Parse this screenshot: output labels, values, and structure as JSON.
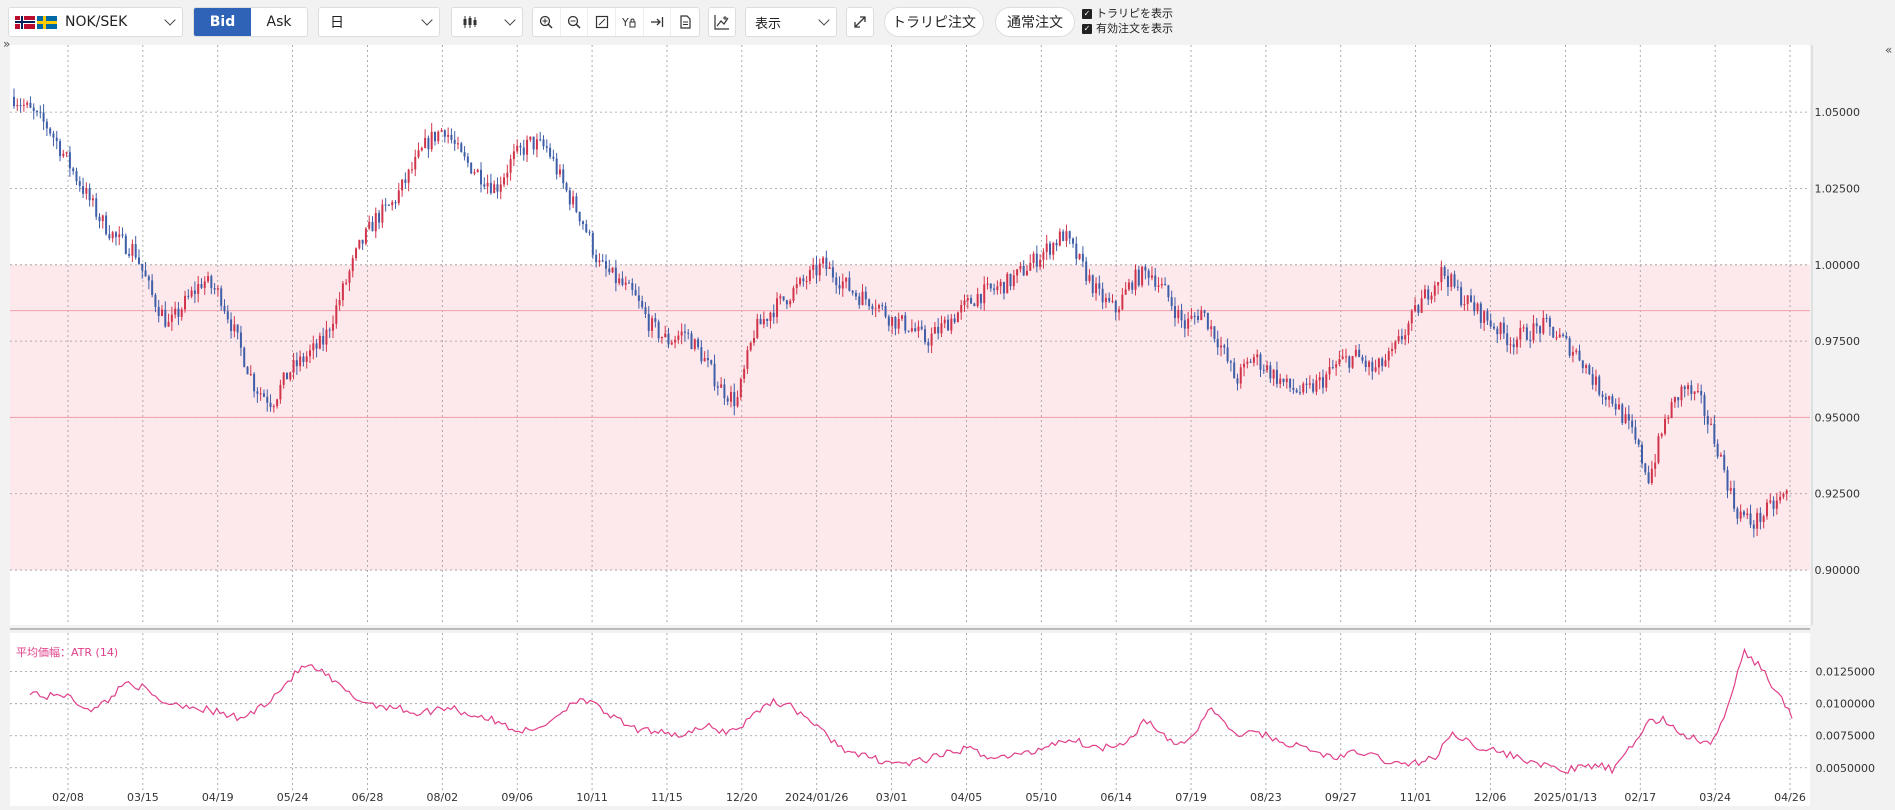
{
  "toolbar": {
    "pair": "NOK/SEK",
    "bid_label": "Bid",
    "ask_label": "Ask",
    "period": "日",
    "display_label": "表示",
    "trap_order": "トラリピ注文",
    "normal_order": "通常注文",
    "check_trap": "トラリピを表示",
    "check_valid": "有効注文を表示"
  },
  "colors": {
    "bid_active": "#2f63b7",
    "up_candle": "#d1344a",
    "down_candle": "#3f5ea8",
    "range_zone": "#fde8ec",
    "atr_line": "#e0408a"
  },
  "chart_data": {
    "type": "candlestick",
    "y_ticks": [
      "1.05000",
      "1.02500",
      "1.00000",
      "0.97500",
      "0.95000",
      "0.92500",
      "0.90000"
    ],
    "y_range": [
      0.882,
      1.072
    ],
    "x_ticks": [
      "02/08",
      "03/15",
      "04/19",
      "05/24",
      "06/28",
      "08/02",
      "09/06",
      "10/11",
      "11/15",
      "12/20",
      "2024/01/26",
      "03/01",
      "04/05",
      "05/10",
      "06/14",
      "07/19",
      "08/23",
      "09/27",
      "11/01",
      "12/06",
      "2025/01/13",
      "02/17",
      "03/24",
      "04/26"
    ],
    "range_zone": [
      0.9,
      1.0
    ],
    "range_lines": [
      0.985,
      0.95
    ],
    "price_path": [
      1.055,
      1.05,
      1.045,
      1.035,
      1.025,
      1.015,
      1.008,
      1.005,
      0.99,
      0.98,
      0.988,
      0.995,
      0.99,
      0.975,
      0.96,
      0.955,
      0.965,
      0.97,
      0.975,
      0.99,
      1.005,
      1.015,
      1.02,
      1.03,
      1.04,
      1.045,
      1.035,
      1.03,
      1.025,
      1.035,
      1.04,
      1.038,
      1.025,
      1.015,
      1.0,
      0.995,
      0.99,
      0.98,
      0.975,
      0.978,
      0.97,
      0.96,
      0.955,
      0.978,
      0.985,
      0.99,
      0.995,
      1.0,
      0.995,
      0.99,
      0.988,
      0.982,
      0.98,
      0.975,
      0.98,
      0.985,
      0.99,
      0.992,
      0.995,
      1.0,
      1.005,
      1.01,
      1.0,
      0.99,
      0.985,
      0.995,
      0.998,
      0.99,
      0.98,
      0.985,
      0.975,
      0.962,
      0.97,
      0.965,
      0.96,
      0.958,
      0.962,
      0.968,
      0.97,
      0.965,
      0.97,
      0.98,
      0.99,
      0.998,
      0.99,
      0.985,
      0.98,
      0.975,
      0.978,
      0.98,
      0.975,
      0.97,
      0.96,
      0.955,
      0.945,
      0.93,
      0.95,
      0.96,
      0.955,
      0.94,
      0.92,
      0.915,
      0.92,
      0.925
    ],
    "atr": {
      "label": "平均価幅：ATR (14)",
      "y_ticks": [
        "0.0125000",
        "0.0100000",
        "0.0075000",
        "0.0050000"
      ],
      "y_range": [
        0.0035,
        0.0152
      ],
      "values": [
        0.011,
        0.0105,
        0.0108,
        0.01,
        0.0095,
        0.0105,
        0.0118,
        0.0112,
        0.0102,
        0.01,
        0.0098,
        0.0095,
        0.0092,
        0.0088,
        0.0095,
        0.0105,
        0.0118,
        0.013,
        0.0125,
        0.0115,
        0.0105,
        0.01,
        0.0098,
        0.0096,
        0.0092,
        0.0095,
        0.0098,
        0.0092,
        0.009,
        0.0085,
        0.008,
        0.0078,
        0.0085,
        0.0095,
        0.0105,
        0.0098,
        0.009,
        0.0082,
        0.0078,
        0.008,
        0.0075,
        0.0078,
        0.0082,
        0.0078,
        0.0082,
        0.0095,
        0.0102,
        0.0098,
        0.009,
        0.0078,
        0.0068,
        0.006,
        0.0058,
        0.0055,
        0.0053,
        0.0055,
        0.0058,
        0.0062,
        0.0065,
        0.006,
        0.0058,
        0.006,
        0.0062,
        0.0068,
        0.0072,
        0.007,
        0.0065,
        0.0068,
        0.0072,
        0.0088,
        0.0075,
        0.0068,
        0.0075,
        0.0098,
        0.0082,
        0.0075,
        0.0078,
        0.0072,
        0.0068,
        0.0065,
        0.006,
        0.0058,
        0.0062,
        0.006,
        0.0055,
        0.0052,
        0.0055,
        0.0058,
        0.0078,
        0.007,
        0.0065,
        0.0062,
        0.0058,
        0.0055,
        0.005,
        0.0048,
        0.005,
        0.0052,
        0.0048,
        0.0065,
        0.0085,
        0.0088,
        0.0078,
        0.0072,
        0.0068,
        0.0095,
        0.014,
        0.013,
        0.011,
        0.009
      ]
    }
  }
}
